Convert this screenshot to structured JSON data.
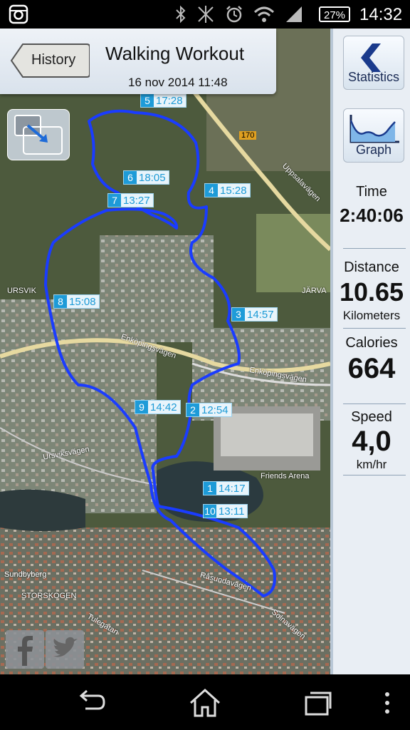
{
  "header": {
    "back_label": "History",
    "title": "Walking Workout",
    "subtitle": "16 nov 2014 11:48"
  },
  "status_bar": {
    "battery": "27%",
    "time": "14:32",
    "icons": [
      "instagram-icon",
      "bluetooth-icon",
      "nfc-icon",
      "alarm-icon",
      "wifi-icon",
      "signal-icon"
    ]
  },
  "map": {
    "place_labels": [
      "URSVIK",
      "JÄRVA",
      "STORSKOGEN",
      "Sundbyberg",
      "Friends Arena"
    ],
    "road_labels": [
      "Uppsalavägen",
      "Enköpingsvägen",
      "Enköpingsvägen",
      "Ursviksvägen",
      "Råsundavägen",
      "Solnavägen",
      "Tulegatan",
      "170"
    ],
    "route_color": "#1a3cff",
    "markers": [
      {
        "n": "5",
        "time": "17:28"
      },
      {
        "n": "6",
        "time": "18:05"
      },
      {
        "n": "7",
        "time": "13:27"
      },
      {
        "n": "4",
        "time": "15:28"
      },
      {
        "n": "8",
        "time": "15:08"
      },
      {
        "n": "3",
        "time": "14:57"
      },
      {
        "n": "9",
        "time": "14:42"
      },
      {
        "n": "2",
        "time": "12:54"
      },
      {
        "n": "1",
        "time": "14:17"
      },
      {
        "n": "10",
        "time": "13:11"
      }
    ]
  },
  "sidebar": {
    "statistics_label": "Statistics",
    "graph_label": "Graph",
    "time": {
      "label": "Time",
      "value": "2:40:06"
    },
    "distance": {
      "label": "Distance",
      "value": "10.65",
      "unit": "Kilometers"
    },
    "calories": {
      "label": "Calories",
      "value": "664"
    },
    "speed": {
      "label": "Speed",
      "value": "4,0",
      "unit": "km/hr"
    }
  }
}
